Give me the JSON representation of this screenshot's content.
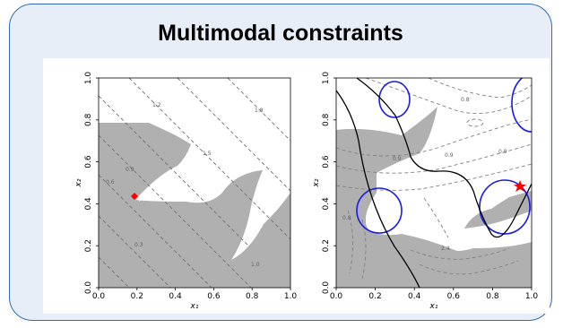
{
  "title": "Multimodal constraints",
  "colors": {
    "panel_bg": "#e8eef8",
    "panel_border": "#2e6db6",
    "infeasible_region": "#b0b0b0",
    "marker": "#ff0000",
    "constraint_circle": "#1a1ae6"
  },
  "left_plot": {
    "xlabel": "x₁",
    "ylabel": "x₂",
    "xticks": [
      "0.0",
      "0.2",
      "0.4",
      "0.6",
      "0.8",
      "1.0"
    ],
    "yticks": [
      "0.0",
      "0.2",
      "0.4",
      "0.6",
      "0.8",
      "1.0"
    ],
    "contour_labels": [
      "1.2",
      "1.5",
      "1.8",
      "0.9",
      "0.6",
      "0.3",
      "1.0"
    ],
    "marker": {
      "x": 0.19,
      "y": 0.4
    }
  },
  "right_plot": {
    "xlabel": "x₁",
    "ylabel": "x₂",
    "xticks": [
      "0.0",
      "0.2",
      "0.4",
      "0.6",
      "0.8",
      "1.0"
    ],
    "yticks": [
      "0.0",
      "0.2",
      "0.4",
      "0.6",
      "0.8",
      "1.0"
    ],
    "contour_labels": [
      "0.8",
      "0.9",
      "0.9",
      "0.9",
      "2.4",
      "0.8"
    ],
    "marker": {
      "x": 0.94,
      "y": 0.47
    }
  }
}
